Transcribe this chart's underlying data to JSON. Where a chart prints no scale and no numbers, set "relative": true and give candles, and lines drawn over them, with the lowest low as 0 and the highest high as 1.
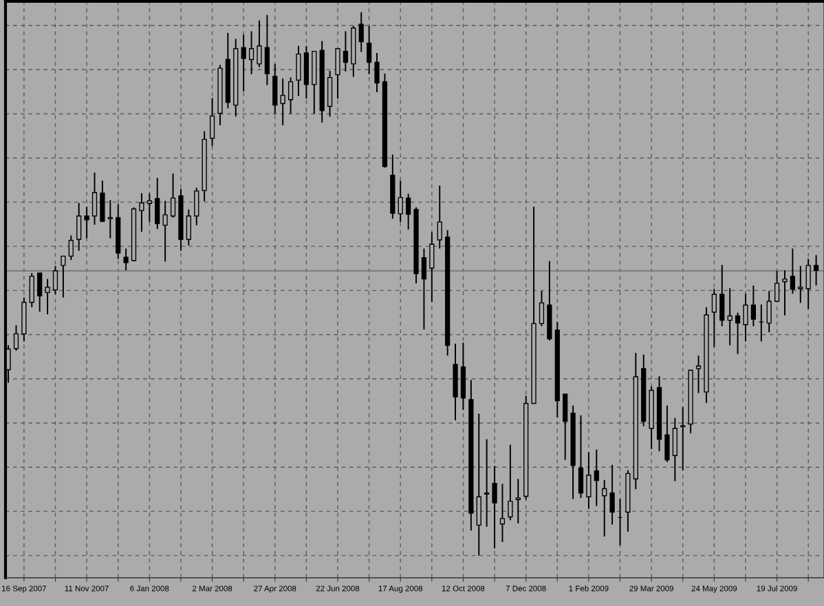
{
  "chart_data": {
    "type": "candlestick",
    "relative": true,
    "grid": true,
    "x": [
      "2007-09-02",
      "2007-09-09",
      "2007-09-16",
      "2007-09-23",
      "2007-09-30",
      "2007-10-07",
      "2007-10-14",
      "2007-10-21",
      "2007-10-28",
      "2007-11-04",
      "2007-11-11",
      "2007-11-18",
      "2007-11-25",
      "2007-12-02",
      "2007-12-09",
      "2007-12-16",
      "2007-12-23",
      "2007-12-30",
      "2008-01-06",
      "2008-01-13",
      "2008-01-20",
      "2008-01-27",
      "2008-02-03",
      "2008-02-10",
      "2008-02-17",
      "2008-02-24",
      "2008-03-02",
      "2008-03-09",
      "2008-03-16",
      "2008-03-23",
      "2008-03-30",
      "2008-04-06",
      "2008-04-13",
      "2008-04-20",
      "2008-04-27",
      "2008-05-04",
      "2008-05-11",
      "2008-05-18",
      "2008-05-25",
      "2008-06-01",
      "2008-06-08",
      "2008-06-15",
      "2008-06-22",
      "2008-06-29",
      "2008-07-06",
      "2008-07-13",
      "2008-07-20",
      "2008-07-27",
      "2008-08-03",
      "2008-08-10",
      "2008-08-17",
      "2008-08-24",
      "2008-08-31",
      "2008-09-07",
      "2008-09-14",
      "2008-09-21",
      "2008-09-28",
      "2008-10-05",
      "2008-10-12",
      "2008-10-19",
      "2008-10-26",
      "2008-11-02",
      "2008-11-09",
      "2008-11-16",
      "2008-11-23",
      "2008-11-30",
      "2008-12-07",
      "2008-12-14",
      "2008-12-21",
      "2008-12-28",
      "2009-01-04",
      "2009-01-11",
      "2009-01-18",
      "2009-01-25",
      "2009-02-01",
      "2009-02-08",
      "2009-02-15",
      "2009-02-22",
      "2009-03-01",
      "2009-03-08",
      "2009-03-15",
      "2009-03-22",
      "2009-03-29",
      "2009-04-05",
      "2009-04-12",
      "2009-04-19",
      "2009-04-26",
      "2009-05-03",
      "2009-05-10",
      "2009-05-17",
      "2009-05-24",
      "2009-05-31",
      "2009-06-07",
      "2009-06-14",
      "2009-06-21",
      "2009-06-28",
      "2009-07-05",
      "2009-07-12",
      "2009-07-19",
      "2009-07-26",
      "2009-08-02",
      "2009-08-09",
      "2009-08-16",
      "2009-08-23"
    ],
    "series": [
      {
        "color": "#000000",
        "ohlc": [
          [
            0.342,
            0.387,
            0.318,
            0.38
          ],
          [
            0.381,
            0.424,
            0.377,
            0.408
          ],
          [
            0.408,
            0.475,
            0.394,
            0.466
          ],
          [
            0.466,
            0.52,
            0.457,
            0.514
          ],
          [
            0.52,
            0.52,
            0.449,
            0.478
          ],
          [
            0.484,
            0.509,
            0.444,
            0.494
          ],
          [
            0.489,
            0.533,
            0.481,
            0.524
          ],
          [
            0.534,
            0.551,
            0.475,
            0.551
          ],
          [
            0.551,
            0.589,
            0.544,
            0.58
          ],
          [
            0.582,
            0.649,
            0.561,
            0.625
          ],
          [
            0.625,
            0.642,
            0.584,
            0.618
          ],
          [
            0.625,
            0.705,
            0.609,
            0.668
          ],
          [
            0.667,
            0.69,
            0.614,
            0.615
          ],
          [
            0.62,
            0.654,
            0.584,
            0.622
          ],
          [
            0.622,
            0.647,
            0.546,
            0.557
          ],
          [
            0.549,
            0.565,
            0.525,
            0.539
          ],
          [
            0.543,
            0.641,
            0.542,
            0.638
          ],
          [
            0.635,
            0.667,
            0.596,
            0.649
          ],
          [
            0.648,
            0.666,
            0.614,
            0.653
          ],
          [
            0.657,
            0.695,
            0.601,
            0.611
          ],
          [
            0.608,
            0.653,
            0.541,
            0.627
          ],
          [
            0.625,
            0.703,
            0.622,
            0.658
          ],
          [
            0.662,
            0.675,
            0.561,
            0.582
          ],
          [
            0.582,
            0.637,
            0.571,
            0.625
          ],
          [
            0.625,
            0.677,
            0.608,
            0.671
          ],
          [
            0.672,
            0.781,
            0.652,
            0.766
          ],
          [
            0.768,
            0.842,
            0.754,
            0.809
          ],
          [
            0.814,
            0.903,
            0.792,
            0.897
          ],
          [
            0.913,
            0.962,
            0.823,
            0.834
          ],
          [
            0.829,
            0.951,
            0.808,
            0.933
          ],
          [
            0.935,
            0.959,
            0.854,
            0.915
          ],
          [
            0.913,
            0.965,
            0.886,
            0.933
          ],
          [
            0.905,
            0.985,
            0.899,
            0.938
          ],
          [
            0.935,
            0.995,
            0.866,
            0.887
          ],
          [
            0.882,
            0.905,
            0.813,
            0.829
          ],
          [
            0.832,
            0.878,
            0.792,
            0.847
          ],
          [
            0.839,
            0.88,
            0.813,
            0.872
          ],
          [
            0.875,
            0.938,
            0.846,
            0.923
          ],
          [
            0.925,
            0.938,
            0.841,
            0.867
          ],
          [
            0.867,
            0.928,
            0.813,
            0.928
          ],
          [
            0.93,
            0.947,
            0.797,
            0.819
          ],
          [
            0.827,
            0.892,
            0.808,
            0.88
          ],
          [
            0.885,
            0.934,
            0.841,
            0.933
          ],
          [
            0.928,
            0.965,
            0.891,
            0.908
          ],
          [
            0.905,
            0.975,
            0.881,
            0.971
          ],
          [
            0.978,
            1.0,
            0.927,
            0.946
          ],
          [
            0.943,
            0.975,
            0.886,
            0.908
          ],
          [
            0.908,
            0.925,
            0.853,
            0.87
          ],
          [
            0.872,
            0.887,
            0.714,
            0.716
          ],
          [
            0.7,
            0.738,
            0.62,
            0.63
          ],
          [
            0.629,
            0.69,
            0.614,
            0.659
          ],
          [
            0.658,
            0.666,
            0.6,
            0.628
          ],
          [
            0.637,
            0.641,
            0.501,
            0.519
          ],
          [
            0.548,
            0.565,
            0.416,
            0.509
          ],
          [
            0.529,
            0.595,
            0.467,
            0.573
          ],
          [
            0.581,
            0.681,
            0.565,
            0.614
          ],
          [
            0.586,
            0.599,
            0.368,
            0.387
          ],
          [
            0.352,
            0.39,
            0.249,
            0.292
          ],
          [
            0.347,
            0.392,
            0.268,
            0.29
          ],
          [
            0.287,
            0.323,
            0.046,
            0.078
          ],
          [
            0.056,
            0.261,
            0.0,
            0.108
          ],
          [
            0.113,
            0.214,
            0.053,
            0.115
          ],
          [
            0.133,
            0.165,
            0.013,
            0.097
          ],
          [
            0.058,
            0.132,
            0.025,
            0.068
          ],
          [
            0.071,
            0.204,
            0.065,
            0.1
          ],
          [
            0.103,
            0.141,
            0.059,
            0.106
          ],
          [
            0.109,
            0.294,
            0.103,
            0.28
          ],
          [
            0.28,
            0.642,
            0.28,
            0.427
          ],
          [
            0.427,
            0.487,
            0.422,
            0.465
          ],
          [
            0.461,
            0.542,
            0.396,
            0.399
          ],
          [
            0.415,
            0.43,
            0.254,
            0.285
          ],
          [
            0.297,
            0.297,
            0.176,
            0.247
          ],
          [
            0.262,
            0.276,
            0.104,
            0.166
          ],
          [
            0.161,
            0.258,
            0.106,
            0.115
          ],
          [
            0.108,
            0.19,
            0.086,
            0.148
          ],
          [
            0.156,
            0.195,
            0.091,
            0.138
          ],
          [
            0.11,
            0.139,
            0.035,
            0.123
          ],
          [
            0.115,
            0.167,
            0.057,
            0.08
          ],
          [
            0.07,
            0.104,
            0.019,
            0.07
          ],
          [
            0.08,
            0.157,
            0.044,
            0.151
          ],
          [
            0.141,
            0.373,
            0.122,
            0.329
          ],
          [
            0.344,
            0.37,
            0.238,
            0.247
          ],
          [
            0.234,
            0.311,
            0.196,
            0.304
          ],
          [
            0.309,
            0.33,
            0.192,
            0.214
          ],
          [
            0.222,
            0.276,
            0.172,
            0.176
          ],
          [
            0.184,
            0.253,
            0.137,
            0.234
          ],
          [
            0.237,
            0.273,
            0.157,
            0.239
          ],
          [
            0.242,
            0.342,
            0.225,
            0.341
          ],
          [
            0.344,
            0.368,
            0.299,
            0.349
          ],
          [
            0.301,
            0.457,
            0.281,
            0.443
          ],
          [
            0.448,
            0.491,
            0.384,
            0.481
          ],
          [
            0.481,
            0.535,
            0.422,
            0.433
          ],
          [
            0.433,
            0.492,
            0.387,
            0.441
          ],
          [
            0.441,
            0.447,
            0.371,
            0.428
          ],
          [
            0.425,
            0.482,
            0.394,
            0.461
          ],
          [
            0.461,
            0.497,
            0.422,
            0.435
          ],
          [
            0.43,
            0.462,
            0.394,
            0.43
          ],
          [
            0.428,
            0.487,
            0.411,
            0.468
          ],
          [
            0.468,
            0.524,
            0.468,
            0.501
          ],
          [
            0.504,
            0.525,
            0.442,
            0.509
          ],
          [
            0.514,
            0.565,
            0.482,
            0.49
          ],
          [
            0.491,
            0.533,
            0.465,
            0.494
          ],
          [
            0.491,
            0.546,
            0.454,
            0.534
          ],
          [
            0.534,
            0.553,
            0.497,
            0.525
          ]
        ]
      }
    ],
    "xlim": [
      "2007-08-30T12:00",
      "2009-08-30"
    ],
    "xticks": [
      {
        "value": "2007-09-16",
        "label": "16 Sep 2007"
      },
      {
        "value": "2007-10-14",
        "label": null
      },
      {
        "value": "2007-11-11",
        "label": "11 Nov 2007"
      },
      {
        "value": "2007-12-09",
        "label": null
      },
      {
        "value": "2008-01-06",
        "label": "6 Jan 2008"
      },
      {
        "value": "2008-02-03",
        "label": null
      },
      {
        "value": "2008-03-02",
        "label": "2 Mar 2008"
      },
      {
        "value": "2008-03-30",
        "label": null
      },
      {
        "value": "2008-04-27",
        "label": "27 Apr 2008"
      },
      {
        "value": "2008-05-25",
        "label": null
      },
      {
        "value": "2008-06-22",
        "label": "22 Jun 2008"
      },
      {
        "value": "2008-07-20",
        "label": null
      },
      {
        "value": "2008-08-17",
        "label": "17 Aug 2008"
      },
      {
        "value": "2008-09-14",
        "label": null
      },
      {
        "value": "2008-10-12",
        "label": "12 Oct 2008"
      },
      {
        "value": "2008-11-09",
        "label": null
      },
      {
        "value": "2008-12-07",
        "label": "7 Dec 2008"
      },
      {
        "value": "2009-01-04",
        "label": null
      },
      {
        "value": "2009-02-01",
        "label": "1 Feb 2009"
      },
      {
        "value": "2009-03-01",
        "label": null
      },
      {
        "value": "2009-03-29",
        "label": "29 Mar 2009"
      },
      {
        "value": "2009-04-26",
        "label": null
      },
      {
        "value": "2009-05-24",
        "label": "24 May 2009"
      },
      {
        "value": "2009-06-21",
        "label": null
      },
      {
        "value": "2009-07-19",
        "label": "19 Jul 2009"
      },
      {
        "value": "2009-08-16",
        "label": null
      }
    ],
    "ref_lines": [
      {
        "axis": "y",
        "value": 0.524,
        "color": "#7a7a7a",
        "line_style": "solid"
      }
    ]
  }
}
